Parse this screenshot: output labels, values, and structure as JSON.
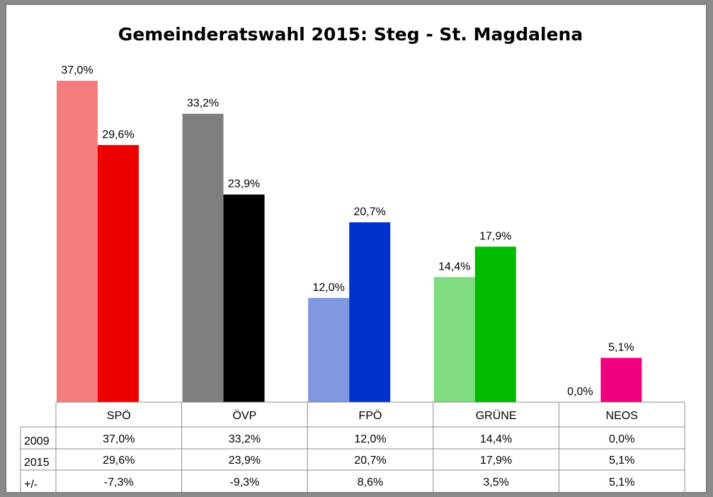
{
  "chart_data": {
    "type": "bar",
    "title": "Gemeinderatswahl 2015: Steg - St. Magdalena",
    "categories": [
      "SPÖ",
      "ÖVP",
      "FPÖ",
      "GRÜNE",
      "NEOS"
    ],
    "series": [
      {
        "name": "2009",
        "values": [
          37.0,
          33.2,
          12.0,
          14.4,
          0.0
        ],
        "labels": [
          "37,0%",
          "33,2%",
          "12,0%",
          "14,4%",
          "0,0%"
        ]
      },
      {
        "name": "2015",
        "values": [
          29.6,
          23.9,
          20.7,
          17.9,
          5.1
        ],
        "labels": [
          "29,6%",
          "23,9%",
          "20,7%",
          "17,9%",
          "5,1%"
        ]
      }
    ],
    "colors": {
      "2009": [
        "#f67d7d",
        "#7f7f7f",
        "#8098e0",
        "#80dc80",
        "#ffffff"
      ],
      "2015": [
        "#ee0000",
        "#000000",
        "#0033cc",
        "#00bb00",
        "#f0007f"
      ]
    },
    "diff_row": {
      "name": "+/-",
      "labels": [
        "-7,3%",
        "-9,3%",
        "8,6%",
        "3,5%",
        "5,1%"
      ]
    },
    "ylim": [
      0,
      40
    ],
    "grid": false,
    "legend": "data-table-below"
  }
}
